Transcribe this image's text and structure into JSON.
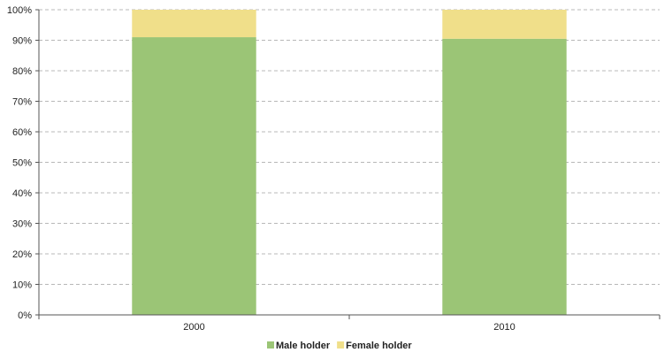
{
  "chart_data": {
    "type": "bar",
    "stacked": true,
    "percent": true,
    "categories": [
      "2000",
      "2010"
    ],
    "series": [
      {
        "name": "Male holder",
        "color": "#9bc576",
        "values": [
          91,
          90.5
        ]
      },
      {
        "name": "Female holder",
        "color": "#f0df8a",
        "values": [
          9,
          9.5
        ]
      }
    ],
    "title": "",
    "xlabel": "",
    "ylabel": "",
    "ylim": [
      0,
      100
    ],
    "yticks": [
      "0%",
      "10%",
      "20%",
      "30%",
      "40%",
      "50%",
      "60%",
      "70%",
      "80%",
      "90%",
      "100%"
    ],
    "grid": true,
    "legend_position": "bottom"
  }
}
